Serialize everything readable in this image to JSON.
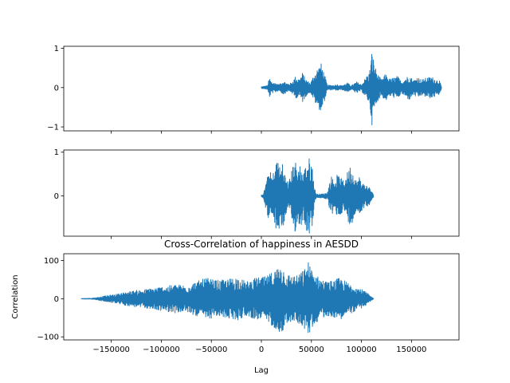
{
  "chart_data": [
    {
      "type": "line",
      "title": "",
      "xlabel": "",
      "ylabel": "",
      "x_range": [
        0,
        180000
      ],
      "ylim": [
        -1.1,
        1.05
      ],
      "yticks": [
        -1,
        0,
        1
      ],
      "ytick_labels": [
        "−1",
        "0",
        "1"
      ],
      "show_xtick_labels": false,
      "series": [
        {
          "color": "#1f77b4",
          "envelope": [
            [
              0,
              0.02
            ],
            [
              6000,
              0.05
            ],
            [
              8000,
              0.25
            ],
            [
              10000,
              0.15
            ],
            [
              14000,
              0.12
            ],
            [
              18000,
              0.08
            ],
            [
              22000,
              0.18
            ],
            [
              26000,
              0.1
            ],
            [
              30000,
              0.12
            ],
            [
              34000,
              0.28
            ],
            [
              38000,
              0.22
            ],
            [
              41000,
              0.38
            ],
            [
              45000,
              0.2
            ],
            [
              49000,
              0.12
            ],
            [
              52000,
              0.3
            ],
            [
              56000,
              0.5
            ],
            [
              60000,
              0.62
            ],
            [
              63000,
              0.35
            ],
            [
              66000,
              0.06
            ],
            [
              72000,
              0.06
            ],
            [
              76000,
              0.08
            ],
            [
              80000,
              0.05
            ],
            [
              86000,
              0.12
            ],
            [
              90000,
              0.05
            ],
            [
              95000,
              0.15
            ],
            [
              100000,
              0.08
            ],
            [
              104000,
              0.25
            ],
            [
              108000,
              0.4
            ],
            [
              110500,
              0.95
            ],
            [
              113000,
              0.6
            ],
            [
              116000,
              0.35
            ],
            [
              120000,
              0.2
            ],
            [
              124000,
              0.35
            ],
            [
              128000,
              0.22
            ],
            [
              132000,
              0.25
            ],
            [
              136000,
              0.3
            ],
            [
              140000,
              0.15
            ],
            [
              144000,
              0.25
            ],
            [
              148000,
              0.32
            ],
            [
              152000,
              0.18
            ],
            [
              156000,
              0.28
            ],
            [
              160000,
              0.2
            ],
            [
              165000,
              0.25
            ],
            [
              170000,
              0.28
            ],
            [
              174000,
              0.22
            ],
            [
              178000,
              0.18
            ],
            [
              180000,
              0.02
            ]
          ]
        }
      ]
    },
    {
      "type": "line",
      "title": "",
      "xlabel": "",
      "ylabel": "",
      "x_range": [
        0,
        112000
      ],
      "ylim": [
        -0.92,
        1.05
      ],
      "yticks": [
        0,
        1
      ],
      "ytick_labels": [
        "0",
        "1"
      ],
      "show_xtick_labels": false,
      "series": [
        {
          "color": "#1f77b4",
          "envelope": [
            [
              0,
              0.02
            ],
            [
              2000,
              0.05
            ],
            [
              5000,
              0.35
            ],
            [
              8000,
              0.6
            ],
            [
              11000,
              0.45
            ],
            [
              14000,
              0.75
            ],
            [
              17000,
              0.9
            ],
            [
              19000,
              0.55
            ],
            [
              21000,
              0.85
            ],
            [
              24000,
              0.45
            ],
            [
              27000,
              0.3
            ],
            [
              30000,
              0.55
            ],
            [
              33000,
              0.9
            ],
            [
              36000,
              0.6
            ],
            [
              39000,
              0.75
            ],
            [
              42000,
              0.5
            ],
            [
              45000,
              0.8
            ],
            [
              48000,
              0.88
            ],
            [
              51000,
              0.7
            ],
            [
              53000,
              0.2
            ],
            [
              55000,
              0.04
            ],
            [
              62000,
              0.05
            ],
            [
              66000,
              0.08
            ],
            [
              68000,
              0.3
            ],
            [
              70000,
              0.45
            ],
            [
              73000,
              0.35
            ],
            [
              76000,
              0.5
            ],
            [
              79000,
              0.42
            ],
            [
              82000,
              0.35
            ],
            [
              86000,
              0.55
            ],
            [
              89000,
              0.7
            ],
            [
              92000,
              0.55
            ],
            [
              95000,
              0.35
            ],
            [
              98000,
              0.45
            ],
            [
              101000,
              0.3
            ],
            [
              105000,
              0.25
            ],
            [
              108000,
              0.2
            ],
            [
              111000,
              0.08
            ],
            [
              112000,
              0.02
            ]
          ]
        }
      ]
    },
    {
      "type": "line",
      "title": "Cross-Correlation of happiness in AESDD",
      "xlabel": "Lag",
      "ylabel": "Correlation",
      "x_range": [
        -180000,
        112000
      ],
      "ylim": [
        -108,
        118
      ],
      "yticks": [
        -100,
        0,
        100
      ],
      "ytick_labels": [
        "−100",
        "0",
        "100"
      ],
      "show_xtick_labels": true,
      "series": [
        {
          "color": "#1f77b4",
          "envelope": [
            [
              -180000,
              0.5
            ],
            [
              -170000,
              1
            ],
            [
              -165000,
              3
            ],
            [
              -155000,
              8
            ],
            [
              -145000,
              12
            ],
            [
              -135000,
              18
            ],
            [
              -125000,
              22
            ],
            [
              -115000,
              25
            ],
            [
              -105000,
              30
            ],
            [
              -95000,
              33
            ],
            [
              -85000,
              38
            ],
            [
              -75000,
              35
            ],
            [
              -65000,
              45
            ],
            [
              -55000,
              55
            ],
            [
              -45000,
              48
            ],
            [
              -35000,
              50
            ],
            [
              -25000,
              58
            ],
            [
              -15000,
              45
            ],
            [
              -5000,
              55
            ],
            [
              5000,
              58
            ],
            [
              15000,
              80
            ],
            [
              20000,
              92
            ],
            [
              25000,
              65
            ],
            [
              35000,
              60
            ],
            [
              42000,
              75
            ],
            [
              47000,
              97
            ],
            [
              52000,
              70
            ],
            [
              58000,
              55
            ],
            [
              65000,
              45
            ],
            [
              72000,
              48
            ],
            [
              78000,
              55
            ],
            [
              85000,
              45
            ],
            [
              92000,
              35
            ],
            [
              100000,
              25
            ],
            [
              106000,
              15
            ],
            [
              110000,
              5
            ],
            [
              112000,
              1
            ]
          ]
        }
      ]
    }
  ],
  "shared_x": {
    "xlim": [
      -197500,
      197500
    ],
    "xticks": [
      -150000,
      -100000,
      -50000,
      0,
      50000,
      100000,
      150000
    ],
    "xtick_labels": [
      "−150000",
      "−100000",
      "−50000",
      "0",
      "50000",
      "100000",
      "150000"
    ]
  }
}
